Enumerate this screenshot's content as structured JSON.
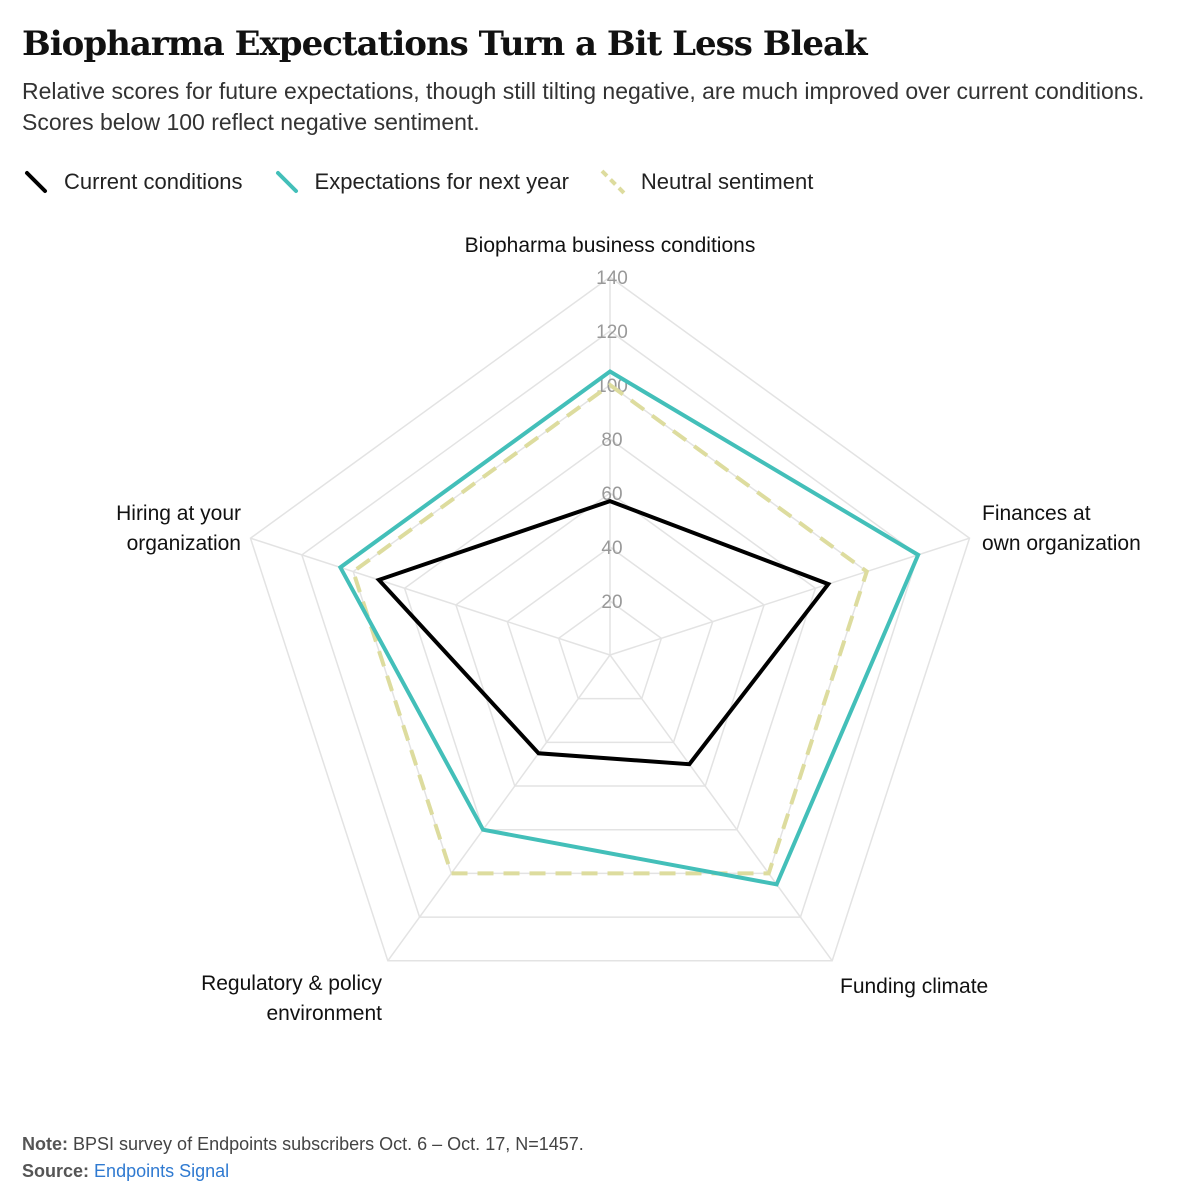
{
  "title": "Biopharma Expectations Turn a Bit Less Bleak",
  "subtitle": "Relative scores for future expectations, though still tilting negative, are much improved over current conditions. Scores below 100 reflect negative sentiment.",
  "legend": [
    {
      "label": "Current conditions",
      "color": "#000000",
      "style": "solid"
    },
    {
      "label": "Expectations for next year",
      "color": "#43bfb9",
      "style": "solid"
    },
    {
      "label": "Neutral sentiment",
      "color": "#dddc9e",
      "style": "dashed"
    }
  ],
  "chart_data": {
    "type": "radar",
    "axes": [
      {
        "label_lines": [
          "Biopharma business conditions"
        ]
      },
      {
        "label_lines": [
          "Finances at",
          "own organization"
        ]
      },
      {
        "label_lines": [
          "Funding climate"
        ]
      },
      {
        "label_lines": [
          "Regulatory & policy",
          "environment"
        ]
      },
      {
        "label_lines": [
          "Hiring at your",
          "organization"
        ]
      }
    ],
    "rmax": 140,
    "ticks": [
      20,
      40,
      60,
      80,
      100,
      120,
      140
    ],
    "grid": true,
    "series": [
      {
        "name": "Neutral sentiment",
        "color": "#dddc9e",
        "dashed": true,
        "values": [
          100,
          100,
          100,
          100,
          100
        ]
      },
      {
        "name": "Expectations for next year",
        "color": "#43bfb9",
        "dashed": false,
        "values": [
          105,
          120,
          105,
          80,
          105
        ]
      },
      {
        "name": "Current conditions",
        "color": "#000000",
        "dashed": false,
        "values": [
          57,
          85,
          50,
          45,
          90
        ]
      }
    ]
  },
  "footer": {
    "note_label": "Note:",
    "note_text": "BPSI survey of Endpoints subscribers Oct. 6 – Oct. 17, N=1457.",
    "source_label": "Source:",
    "source_text": "Endpoints Signal"
  }
}
